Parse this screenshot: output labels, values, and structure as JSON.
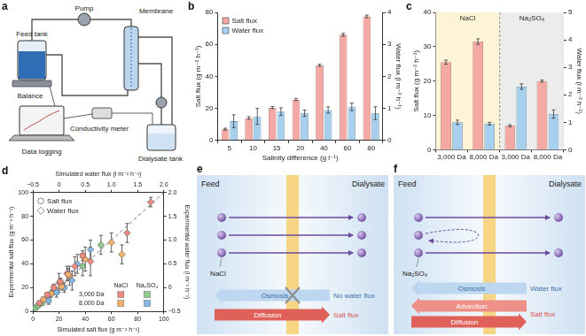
{
  "chart_data": [
    {
      "panel": "b",
      "type": "bar",
      "categories": [
        "5",
        "10",
        "15",
        "20",
        "40",
        "60",
        "80"
      ],
      "x_label": "Salinity difference (g l⁻¹)",
      "y_label": "Salt flux (g m⁻² h⁻¹)",
      "ylim": [
        0,
        80
      ],
      "yticks": [
        0,
        20,
        40,
        60,
        80
      ],
      "y2_label": "Water flux (l m⁻² h⁻¹)",
      "y2lim": [
        0,
        4
      ],
      "y2ticks": [
        0,
        1,
        2,
        3,
        4
      ],
      "grid": false,
      "legend": "top-left",
      "series": [
        {
          "name": "Salt flux",
          "color": "#f5a9a4",
          "values": [
            7,
            14,
            20.5,
            25.5,
            47,
            66,
            77.5
          ],
          "errors": [
            0.6,
            0.8,
            0.7,
            0.7,
            0.6,
            0.9,
            0.8
          ]
        },
        {
          "name": "Water flux",
          "color": "#a7d0ee",
          "axis": "y2",
          "values": [
            0.6,
            0.75,
            0.9,
            0.85,
            0.95,
            1.05,
            0.85
          ],
          "errors": [
            0.2,
            0.25,
            0.12,
            0.1,
            0.1,
            0.12,
            0.2
          ]
        }
      ]
    },
    {
      "panel": "c",
      "type": "bar",
      "groups": [
        {
          "name": "NaCl",
          "color": "#fdf4d8",
          "categories": [
            "3,000 Da",
            "8,000 Da"
          ]
        },
        {
          "name": "Na₂SO₄",
          "color": "#ececec",
          "categories": [
            "3,000 Da",
            "8,000 Da"
          ]
        }
      ],
      "y_label": "Salt flux (g m⁻² h⁻¹)",
      "ylim": [
        0,
        40
      ],
      "yticks": [
        0,
        10,
        20,
        30,
        40
      ],
      "y2_label": "Water flux (l m⁻² h⁻¹)",
      "y2lim": [
        0,
        5
      ],
      "y2ticks": [
        0,
        1,
        2,
        3,
        4,
        5
      ],
      "grid": false,
      "series": [
        {
          "color": "#f5a9a4",
          "values": [
            25.5,
            31.5,
            7,
            20
          ],
          "errors": [
            0.6,
            0.8,
            0.3,
            0.3
          ]
        },
        {
          "color": "#a7d0ee",
          "axis": "y2",
          "values": [
            1.0,
            0.95,
            2.3,
            1.3
          ],
          "errors": [
            0.08,
            0.05,
            0.1,
            0.15
          ]
        }
      ]
    },
    {
      "panel": "d",
      "type": "scatter",
      "x_label": "Simulated salt flux (g m⁻² h⁻¹)",
      "xlim": [
        0,
        100
      ],
      "xticks": [
        0,
        20,
        40,
        60,
        80,
        100
      ],
      "x2_label": "Simulated water flux (l m⁻² h⁻¹)",
      "x2lim": [
        -0.5,
        2
      ],
      "x2ticks": [
        {
          "value": -0.5,
          "label": "−0.5"
        },
        0,
        0.5,
        {
          "value": 1,
          "label": "1.0"
        },
        1.5,
        {
          "value": 2,
          "label": "2.0"
        }
      ],
      "y_label": "Experimental salt flux (g m⁻² h⁻¹)",
      "ylim": [
        0,
        100
      ],
      "yticks": [
        0,
        20,
        40,
        60,
        80,
        100
      ],
      "y2_label": "Experimental water flux (l m⁻² h⁻¹)",
      "y2lim": [
        -0.5,
        2
      ],
      "y2ticks": [
        {
          "value": -0.5,
          "label": "−0.5"
        },
        0,
        0.5,
        {
          "value": 1,
          "label": "1.0"
        },
        1.5,
        {
          "value": 2,
          "label": "2.0"
        }
      ],
      "grid": false,
      "legend": "top-left",
      "reference_line": {
        "x": [
          0,
          100
        ],
        "y": [
          0,
          100
        ],
        "line_style": "dashed"
      },
      "color_key": {
        "rows": [
          "3,000 Da",
          "8,000 Da"
        ],
        "columns": [
          "NaCl",
          "Na₂SO₄"
        ],
        "colors": [
          [
            "#f08a80",
            "#8ccc8a"
          ],
          [
            "#f5b06a",
            "#86b8e6"
          ]
        ]
      },
      "series": [
        {
          "name": "Salt flux",
          "marker": "circle",
          "subsets": [
            {
              "row": "3,000 Da",
              "column": "NaCl",
              "x": [
                5,
                11,
                16,
                21,
                38
              ],
              "y": [
                7,
                14,
                20,
                25,
                47
              ],
              "errors": [
                1,
                2,
                3,
                3,
                4
              ]
            },
            {
              "row": "8,000 Da",
              "column": "NaCl",
              "x": [
                8,
                14,
                22,
                27
              ],
              "y": [
                10,
                15,
                21,
                31
              ],
              "errors": [
                2,
                3,
                3,
                5
              ]
            },
            {
              "row": "3,000 Da",
              "column": "Na₂SO₄",
              "x": [
                2,
                4,
                7
              ],
              "y": [
                3,
                5,
                7
              ],
              "errors": [
                1,
                1,
                2
              ]
            },
            {
              "row": "8,000 Da",
              "column": "Na₂SO₄",
              "x": [
                12,
                18,
                24
              ],
              "y": [
                9,
                16,
                20
              ],
              "errors": [
                3,
                4,
                4
              ]
            }
          ]
        },
        {
          "name": "Water flux",
          "marker": "diamond",
          "axis": "y2",
          "subsets": [
            {
              "row": "3,000 Da",
              "column": "NaCl",
              "x": [
                0,
                0.15,
                0.3,
                0.6,
                1.3,
                1.75
              ],
              "y": [
                0.1,
                0.3,
                0.45,
                0.55,
                1.15,
                1.8
              ],
              "errors": [
                0.2,
                0.15,
                0.2,
                0.3,
                0.2,
                0.1
              ]
            },
            {
              "row": "8,000 Da",
              "column": "NaCl",
              "x": [
                0.2,
                0.5,
                1.0,
                1.2
              ],
              "y": [
                0.25,
                0.6,
                0.95,
                0.7
              ],
              "errors": [
                0.2,
                0.25,
                0.2,
                0.2
              ]
            },
            {
              "row": "3,000 Da",
              "column": "Na₂SO₄",
              "x": [
                0.45,
                0.8
              ],
              "y": [
                0.45,
                0.9
              ],
              "errors": [
                0.2,
                0.2
              ]
            },
            {
              "row": "8,000 Da",
              "column": "Na₂SO₄",
              "x": [
                0.25,
                0.35,
                0.6
              ],
              "y": [
                0.15,
                0.5,
                0.8
              ],
              "errors": [
                0.2,
                0.2,
                0.2
              ]
            }
          ]
        }
      ]
    }
  ],
  "diagrams": [
    {
      "panel": "a",
      "labels": {
        "feed_tank": "Feed tank",
        "pump": "Pump",
        "membrane": "Membrane",
        "balance": "Balance",
        "conductivity_meter": "Conductivity meter",
        "data_logging": "Data logging",
        "dialysate_tank": "Dialysate tank"
      }
    },
    {
      "panel": "e",
      "osmosis_blocked": true,
      "labels": {
        "feed": "Feed",
        "dialysate": "Dialysate",
        "solute": "NaCl",
        "osmosis": "Osmosis",
        "water": "No water flux",
        "diffusion": "Diffusion",
        "salt": "Salt flux"
      }
    },
    {
      "panel": "f",
      "osmosis_blocked": false,
      "labels": {
        "feed": "Feed",
        "dialysate": "Dialysate",
        "solute": "Na₂SO₄",
        "osmosis": "Osmosis",
        "water": "Water flux",
        "advection": "Advection",
        "diffusion": "Diffusion",
        "salt": "Salt flux"
      }
    }
  ]
}
